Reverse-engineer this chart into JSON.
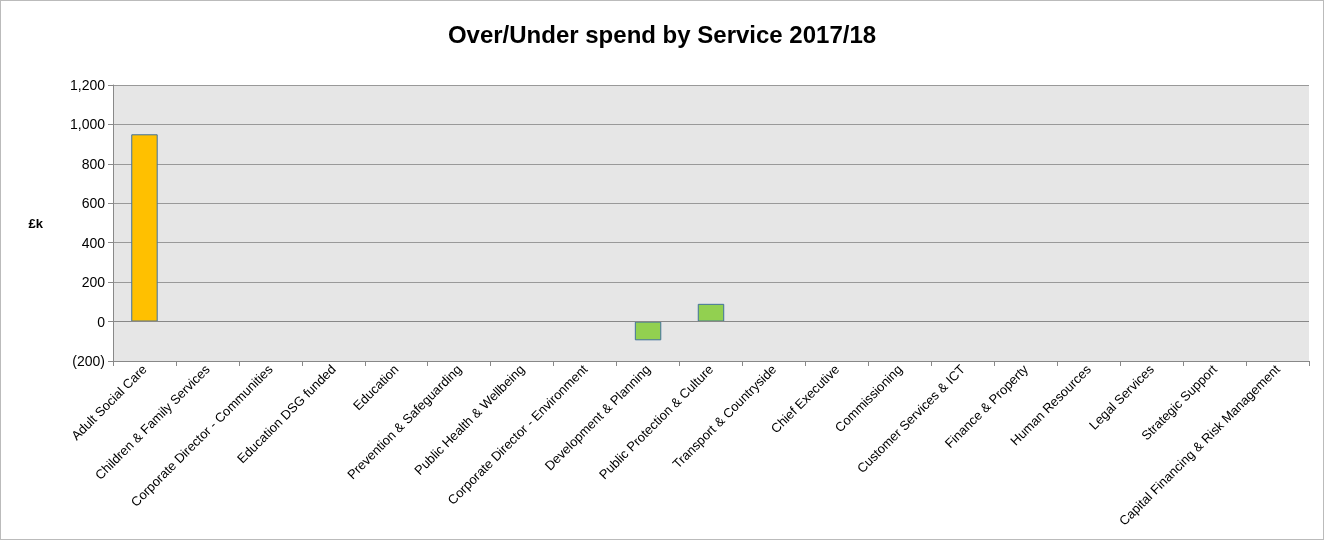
{
  "chart_data": {
    "type": "bar",
    "title": "Over/Under spend by Service 2017/18",
    "ylabel": "£k",
    "categories": [
      "Adult Social Care",
      "Children & Family Services",
      "Corporate Director - Communities",
      "Education DSG funded",
      "Education",
      "Prevention & Safeguarding",
      "Public Health & Wellbeing",
      "Corporate Director - Environment",
      "Development & Planning",
      "Public Protection & Culture",
      "Transport & Countryside",
      "Chief Executive",
      "Commissioning",
      "Customer Services & ICT",
      "Finance & Property",
      "Human Resources",
      "Legal Services",
      "Strategic Support",
      "Capital Financing & Risk Management"
    ],
    "values": [
      950,
      0,
      0,
      0,
      0,
      0,
      0,
      0,
      -95,
      90,
      0,
      0,
      0,
      0,
      0,
      0,
      0,
      0,
      0
    ],
    "colors": [
      "#ffc000",
      "#ffc000",
      "#ffc000",
      "#ffc000",
      "#ffc000",
      "#ffc000",
      "#ffc000",
      "#92d050",
      "#92d050",
      "#92d050",
      "#92d050",
      "#92d050",
      "#92d050",
      "#92d050",
      "#92d050",
      "#92d050",
      "#92d050",
      "#92d050",
      "#92d050"
    ],
    "ylim": [
      -200,
      1200
    ],
    "yticks": [
      {
        "value": -200,
        "label": "(200)"
      },
      0,
      200,
      400,
      600,
      800,
      {
        "value": 1000,
        "label": "1,000"
      },
      {
        "value": 1200,
        "label": "1,200"
      }
    ],
    "grid": "y"
  }
}
